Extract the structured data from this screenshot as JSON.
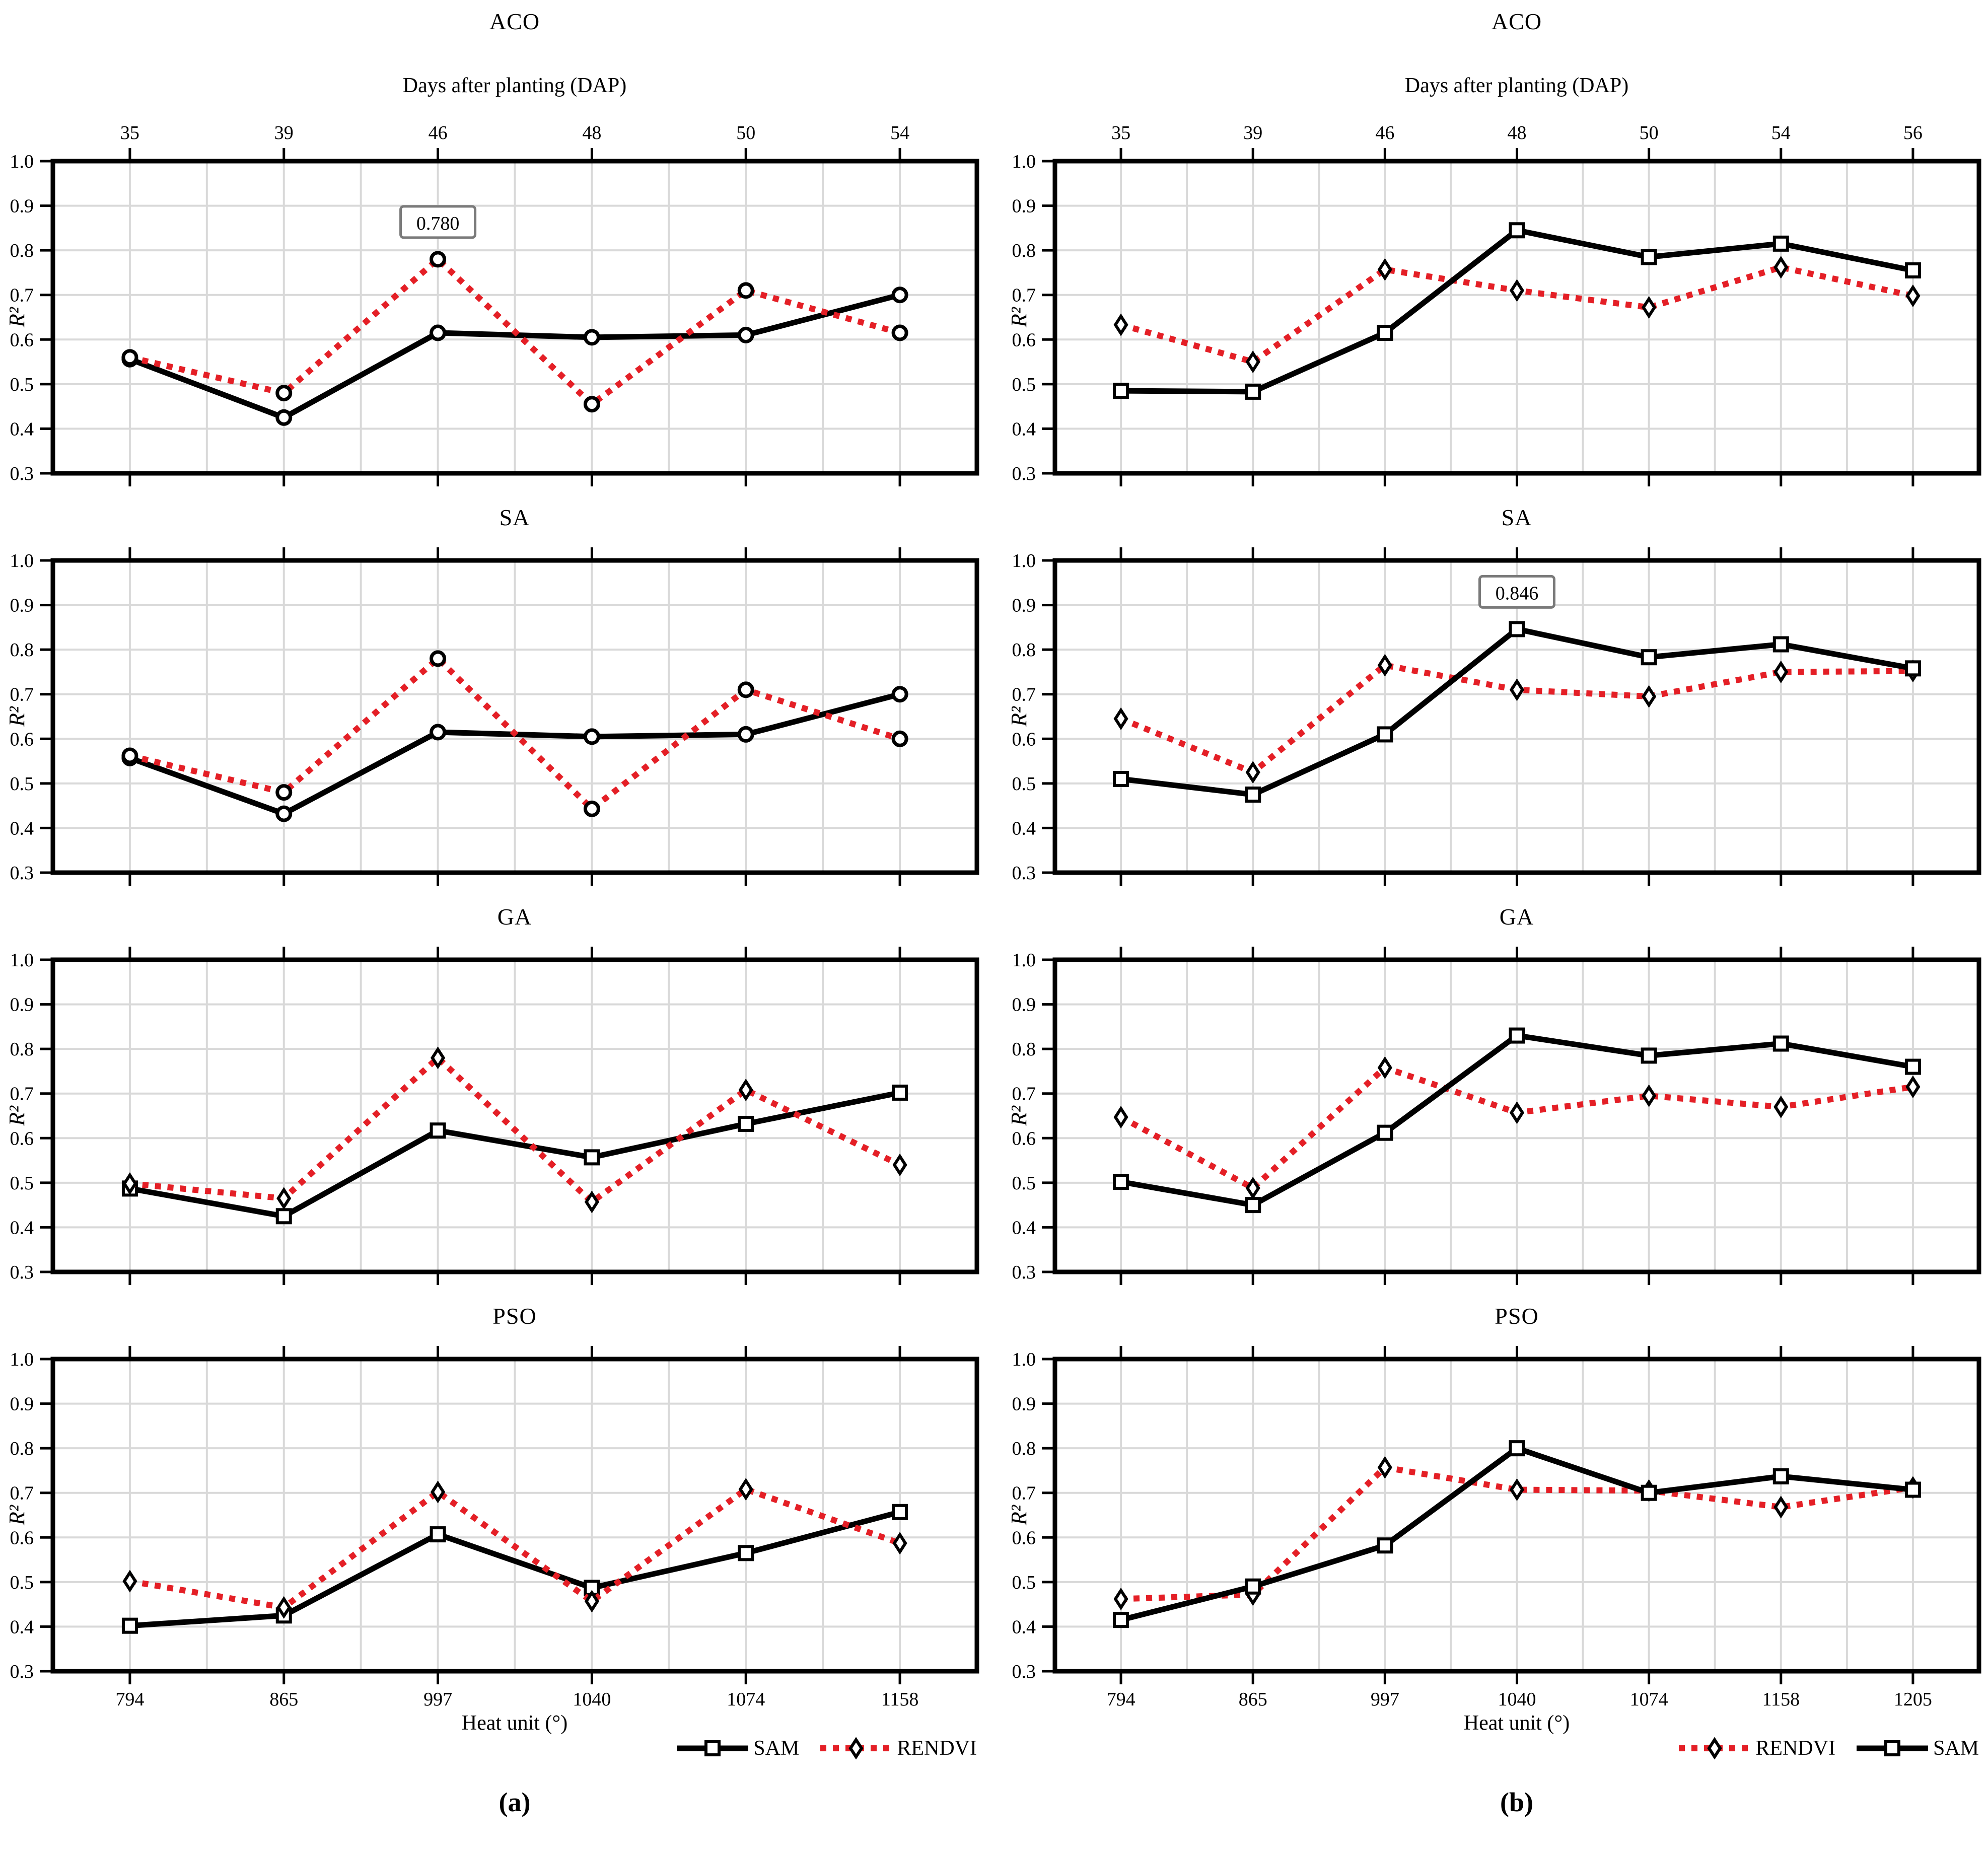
{
  "figure": {
    "top_axis_label": "Days after planting (DAP)",
    "bottom_axis_label": "Heat unit (°)",
    "y_axis_label": "R²",
    "captions": {
      "a": "(a)",
      "b": "(b)"
    },
    "legends": {
      "a": [
        {
          "label": "SAM"
        },
        {
          "label": "RENDVI"
        }
      ],
      "b": [
        {
          "label": "RENDVI"
        },
        {
          "label": "SAM"
        }
      ]
    },
    "colors": {
      "sam": "#000000",
      "rendvi": "#e41f26",
      "grid": "#d9d9d9",
      "annotation_border": "#7a7a7a"
    }
  },
  "chart_data": [
    {
      "type": "line",
      "title": "ACO",
      "column": "a",
      "row": 0,
      "x_categories": [
        "794",
        "865",
        "997",
        "1040",
        "1074",
        "1158"
      ],
      "dap_labels": [
        "35",
        "39",
        "46",
        "48",
        "50",
        "54"
      ],
      "xlabel": "Heat unit (°)",
      "top_xlabel": "Days after planting (DAP)",
      "ylabel": "R²",
      "ylim": [
        0.3,
        1.0
      ],
      "yticks": [
        "1.0",
        "0.9",
        "0.8",
        "0.7",
        "0.6",
        "0.5",
        "0.4",
        "0.3"
      ],
      "grid": true,
      "series": [
        {
          "name": "SAM",
          "marker": "circle",
          "values": [
            0.556,
            0.425,
            0.615,
            0.605,
            0.61,
            0.7
          ]
        },
        {
          "name": "RENDVI",
          "marker": "circle",
          "values": [
            0.56,
            0.48,
            0.78,
            0.455,
            0.71,
            0.615
          ]
        }
      ],
      "annotation": {
        "text": "0.780",
        "series": "RENDVI",
        "point": 2
      }
    },
    {
      "type": "line",
      "title": "ACO",
      "column": "b",
      "row": 0,
      "x_categories": [
        "794",
        "865",
        "997",
        "1040",
        "1074",
        "1158",
        "1205"
      ],
      "dap_labels": [
        "35",
        "39",
        "46",
        "48",
        "50",
        "54",
        "56"
      ],
      "xlabel": "Heat unit (°)",
      "top_xlabel": "Days after planting (DAP)",
      "ylabel": "R²",
      "ylim": [
        0.3,
        1.0
      ],
      "yticks": [
        "1.0",
        "0.9",
        "0.8",
        "0.7",
        "0.6",
        "0.5",
        "0.4",
        "0.3"
      ],
      "grid": true,
      "series": [
        {
          "name": "RENDVI",
          "marker": "diamond",
          "values": [
            0.633,
            0.55,
            0.757,
            0.71,
            0.672,
            0.762,
            0.698
          ]
        },
        {
          "name": "SAM",
          "marker": "square",
          "values": [
            0.485,
            0.483,
            0.615,
            0.845,
            0.785,
            0.815,
            0.755
          ]
        }
      ]
    },
    {
      "type": "line",
      "title": "SA",
      "column": "a",
      "row": 1,
      "x_categories": [
        "794",
        "865",
        "997",
        "1040",
        "1074",
        "1158"
      ],
      "dap_labels": [
        "35",
        "39",
        "46",
        "48",
        "50",
        "54"
      ],
      "xlabel": "Heat unit (°)",
      "ylabel": "R²",
      "ylim": [
        0.3,
        1.0
      ],
      "yticks": [
        "1.0",
        "0.9",
        "0.8",
        "0.7",
        "0.6",
        "0.5",
        "0.4",
        "0.3"
      ],
      "grid": true,
      "series": [
        {
          "name": "SAM",
          "marker": "circle",
          "values": [
            0.557,
            0.432,
            0.615,
            0.605,
            0.61,
            0.7
          ]
        },
        {
          "name": "RENDVI",
          "marker": "circle",
          "values": [
            0.562,
            0.48,
            0.78,
            0.443,
            0.71,
            0.6
          ]
        }
      ]
    },
    {
      "type": "line",
      "title": "SA",
      "column": "b",
      "row": 1,
      "x_categories": [
        "794",
        "865",
        "997",
        "1040",
        "1074",
        "1158",
        "1205"
      ],
      "dap_labels": [
        "35",
        "39",
        "46",
        "48",
        "50",
        "54",
        "56"
      ],
      "xlabel": "Heat unit (°)",
      "ylabel": "R²",
      "ylim": [
        0.3,
        1.0
      ],
      "yticks": [
        "1.0",
        "0.9",
        "0.8",
        "0.7",
        "0.6",
        "0.5",
        "0.4",
        "0.3"
      ],
      "grid": true,
      "series": [
        {
          "name": "RENDVI",
          "marker": "diamond",
          "values": [
            0.645,
            0.525,
            0.765,
            0.71,
            0.695,
            0.75,
            0.752
          ]
        },
        {
          "name": "SAM",
          "marker": "square",
          "values": [
            0.51,
            0.475,
            0.61,
            0.846,
            0.783,
            0.812,
            0.758
          ]
        }
      ],
      "annotation": {
        "text": "0.846",
        "series": "SAM",
        "point": 3
      }
    },
    {
      "type": "line",
      "title": "GA",
      "column": "a",
      "row": 2,
      "x_categories": [
        "794",
        "865",
        "997",
        "1040",
        "1074",
        "1158"
      ],
      "dap_labels": [
        "35",
        "39",
        "46",
        "48",
        "50",
        "54"
      ],
      "xlabel": "Heat unit (°)",
      "ylabel": "R²",
      "ylim": [
        0.3,
        1.0
      ],
      "yticks": [
        "1.0",
        "0.9",
        "0.8",
        "0.7",
        "0.6",
        "0.5",
        "0.4",
        "0.3"
      ],
      "grid": true,
      "series": [
        {
          "name": "SAM",
          "marker": "square",
          "values": [
            0.487,
            0.425,
            0.617,
            0.557,
            0.632,
            0.702
          ]
        },
        {
          "name": "RENDVI",
          "marker": "diamond",
          "values": [
            0.498,
            0.465,
            0.78,
            0.457,
            0.708,
            0.54
          ]
        }
      ]
    },
    {
      "type": "line",
      "title": "GA",
      "column": "b",
      "row": 2,
      "x_categories": [
        "794",
        "865",
        "997",
        "1040",
        "1074",
        "1158",
        "1205"
      ],
      "dap_labels": [
        "35",
        "39",
        "46",
        "48",
        "50",
        "54",
        "56"
      ],
      "xlabel": "Heat unit (°)",
      "ylabel": "R²",
      "ylim": [
        0.3,
        1.0
      ],
      "yticks": [
        "1.0",
        "0.9",
        "0.8",
        "0.7",
        "0.6",
        "0.5",
        "0.4",
        "0.3"
      ],
      "grid": true,
      "series": [
        {
          "name": "RENDVI",
          "marker": "diamond",
          "values": [
            0.647,
            0.488,
            0.758,
            0.657,
            0.695,
            0.67,
            0.715
          ]
        },
        {
          "name": "SAM",
          "marker": "square",
          "values": [
            0.502,
            0.45,
            0.612,
            0.83,
            0.785,
            0.812,
            0.76
          ]
        }
      ]
    },
    {
      "type": "line",
      "title": "PSO",
      "column": "a",
      "row": 3,
      "x_categories": [
        "794",
        "865",
        "997",
        "1040",
        "1074",
        "1158"
      ],
      "dap_labels": [
        "35",
        "39",
        "46",
        "48",
        "50",
        "54"
      ],
      "xlabel": "Heat unit (°)",
      "ylabel": "R²",
      "ylim": [
        0.3,
        1.0
      ],
      "yticks": [
        "1.0",
        "0.9",
        "0.8",
        "0.7",
        "0.6",
        "0.5",
        "0.4",
        "0.3"
      ],
      "grid": true,
      "series": [
        {
          "name": "SAM",
          "marker": "square",
          "values": [
            0.402,
            0.425,
            0.607,
            0.487,
            0.565,
            0.657
          ]
        },
        {
          "name": "RENDVI",
          "marker": "diamond",
          "values": [
            0.502,
            0.443,
            0.702,
            0.457,
            0.708,
            0.587
          ]
        }
      ]
    },
    {
      "type": "line",
      "title": "PSO",
      "column": "b",
      "row": 3,
      "x_categories": [
        "794",
        "865",
        "997",
        "1040",
        "1074",
        "1158",
        "1205"
      ],
      "dap_labels": [
        "35",
        "39",
        "46",
        "48",
        "50",
        "54",
        "56"
      ],
      "xlabel": "Heat unit (°)",
      "ylabel": "R²",
      "ylim": [
        0.3,
        1.0
      ],
      "yticks": [
        "1.0",
        "0.9",
        "0.8",
        "0.7",
        "0.6",
        "0.5",
        "0.4",
        "0.3"
      ],
      "grid": true,
      "series": [
        {
          "name": "RENDVI",
          "marker": "diamond",
          "values": [
            0.462,
            0.472,
            0.757,
            0.707,
            0.705,
            0.668,
            0.712
          ]
        },
        {
          "name": "SAM",
          "marker": "square",
          "values": [
            0.415,
            0.49,
            0.582,
            0.8,
            0.7,
            0.737,
            0.707
          ]
        }
      ]
    }
  ]
}
